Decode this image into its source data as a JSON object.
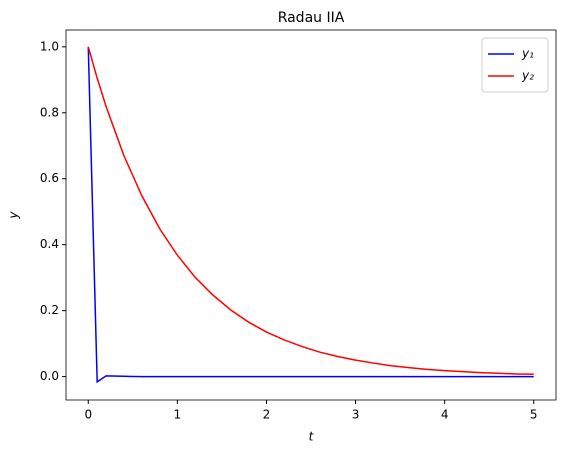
{
  "chart_data": {
    "type": "line",
    "title": "Radau IIA",
    "x_label": "t",
    "y_label": "y",
    "x": [
      0,
      0.1,
      0.2,
      0.4,
      0.6,
      0.8,
      1.0,
      1.2,
      1.4,
      1.6,
      1.8,
      2.0,
      2.2,
      2.4,
      2.6,
      2.8,
      3.0,
      3.2,
      3.4,
      3.6,
      3.8,
      4.0,
      4.2,
      4.4,
      4.6,
      4.8,
      5.0
    ],
    "series": [
      {
        "name": "y₁",
        "color": "#0000ff",
        "values": [
          1,
          -0.016,
          0.002,
          0.001,
          0,
          0,
          0,
          0,
          0,
          0,
          0,
          0,
          0,
          0,
          0,
          0,
          0,
          0,
          0,
          0,
          0,
          0,
          0,
          0,
          0,
          0,
          0
        ]
      },
      {
        "name": "y₂",
        "color": "#ff0000",
        "values": [
          1,
          0.905,
          0.819,
          0.67,
          0.549,
          0.449,
          0.368,
          0.301,
          0.247,
          0.202,
          0.165,
          0.135,
          0.111,
          0.091,
          0.074,
          0.061,
          0.05,
          0.041,
          0.033,
          0.027,
          0.022,
          0.018,
          0.015,
          0.012,
          0.01,
          0.008,
          0.007
        ]
      }
    ],
    "xlim": [
      -0.25,
      5.25
    ],
    "xticks": [
      0,
      1,
      2,
      3,
      4,
      5
    ],
    "ylim": [
      -0.071,
      1.051
    ],
    "yticks": [
      {
        "value": 0,
        "label": "0.0"
      },
      {
        "value": 0.2,
        "label": "0.2"
      },
      {
        "value": 0.4,
        "label": "0.4"
      },
      {
        "value": 0.6,
        "label": "0.6"
      },
      {
        "value": 0.8,
        "label": "0.8"
      },
      {
        "value": 1,
        "label": "1.0"
      }
    ],
    "legend": "upper right",
    "grid": false
  }
}
